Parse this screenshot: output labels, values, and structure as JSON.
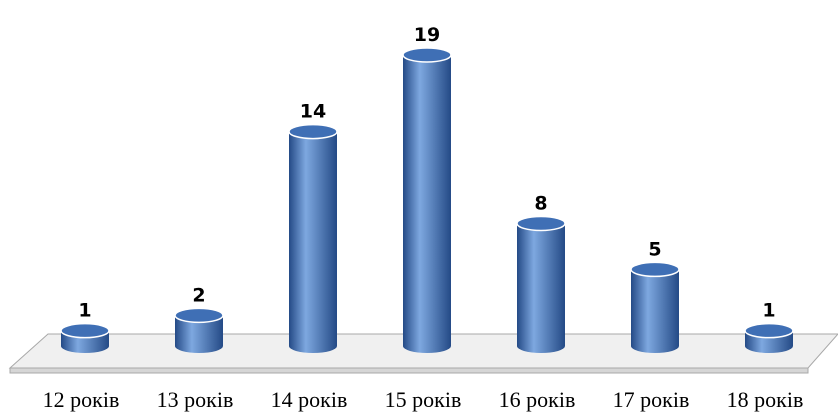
{
  "chart_data": {
    "type": "bar",
    "style": "3d-cylinder",
    "categories": [
      "12 років",
      "13 років",
      "14 років",
      "15 років",
      "16 років",
      "17 років",
      "18 років"
    ],
    "values": [
      1,
      2,
      14,
      19,
      8,
      5,
      1
    ],
    "title": "",
    "xlabel": "",
    "ylabel": "",
    "ylim": [
      0,
      19
    ],
    "grid": false,
    "legend": "none",
    "data_labels": true,
    "bar_color": "#3f6fb5",
    "bar_dark": "#244a86",
    "bar_light": "#7ea8e0",
    "floor_color": "#f0f0f0"
  }
}
